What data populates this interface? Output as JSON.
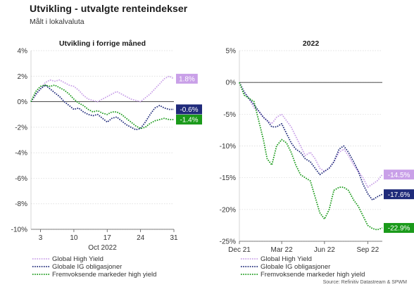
{
  "header": {
    "title": "Utvikling - utvalgte renteindekser",
    "subtitle": "Målt i lokalvaluta"
  },
  "colors": {
    "global_high_yield": "#c9a0e8",
    "globale_ig": "#1f2a7a",
    "fremvoksende": "#1a9a1a",
    "grid": "#d6d6d6",
    "zero": "#333333"
  },
  "source": "Source: Refinitiv Datastream & SPWM",
  "chart_data": [
    {
      "type": "line",
      "title": "Utvikling i forrige måned",
      "xlabel": "Oct 2022",
      "ylabel": "",
      "x_ticks": [
        "3",
        "10",
        "17",
        "24",
        "31"
      ],
      "x_tick_values": [
        3,
        10,
        17,
        24,
        31
      ],
      "xlim": [
        1,
        31
      ],
      "ylim": [
        -10,
        4
      ],
      "y_ticks": [
        4,
        2,
        0,
        -2,
        -4,
        -6,
        -8,
        -10
      ],
      "y_tick_labels": [
        "4%",
        "2%",
        "0%",
        "-2%",
        "-4%",
        "-6%",
        "-8%",
        "-10%"
      ],
      "grid": true,
      "series": [
        {
          "name": "Global High Yield",
          "color_key": "global_high_yield",
          "end_label": "1.8%",
          "x": [
            1,
            2,
            3,
            4,
            5,
            6,
            7,
            8,
            9,
            10,
            11,
            12,
            13,
            14,
            15,
            16,
            17,
            18,
            19,
            20,
            21,
            22,
            23,
            24,
            25,
            26,
            27,
            28,
            29,
            30,
            31
          ],
          "y": [
            0.0,
            0.5,
            1.0,
            1.5,
            1.7,
            1.6,
            1.7,
            1.5,
            1.3,
            1.2,
            0.9,
            0.5,
            0.2,
            0.1,
            0.0,
            0.2,
            0.4,
            0.6,
            0.8,
            0.6,
            0.4,
            0.2,
            0.1,
            0.0,
            0.3,
            0.6,
            1.0,
            1.4,
            1.8,
            2.0,
            1.8
          ]
        },
        {
          "name": "Globale IG obligasjoner",
          "color_key": "globale_ig",
          "end_label": "-0.6%",
          "x": [
            1,
            2,
            3,
            4,
            5,
            6,
            7,
            8,
            9,
            10,
            11,
            12,
            13,
            14,
            15,
            16,
            17,
            18,
            19,
            20,
            21,
            22,
            23,
            24,
            25,
            26,
            27,
            28,
            29,
            30,
            31
          ],
          "y": [
            0.0,
            0.6,
            1.0,
            1.3,
            1.0,
            0.7,
            0.4,
            0.0,
            -0.3,
            -0.6,
            -0.5,
            -0.8,
            -1.0,
            -1.1,
            -1.0,
            -1.3,
            -1.6,
            -1.3,
            -1.2,
            -1.5,
            -1.8,
            -2.0,
            -2.2,
            -2.1,
            -1.6,
            -1.0,
            -0.5,
            -0.3,
            -0.5,
            -0.6,
            -0.6
          ]
        },
        {
          "name": "Fremvoksende markeder high yield",
          "color_key": "fremvoksende",
          "end_label": "-1.4%",
          "x": [
            1,
            2,
            3,
            4,
            5,
            6,
            7,
            8,
            9,
            10,
            11,
            12,
            13,
            14,
            15,
            16,
            17,
            18,
            19,
            20,
            21,
            22,
            23,
            24,
            25,
            26,
            27,
            28,
            29,
            30,
            31
          ],
          "y": [
            0.0,
            0.8,
            1.2,
            1.3,
            1.2,
            1.3,
            1.1,
            0.9,
            0.6,
            0.2,
            -0.1,
            -0.3,
            -0.6,
            -0.8,
            -0.7,
            -0.9,
            -1.0,
            -0.8,
            -0.8,
            -1.0,
            -1.3,
            -1.6,
            -1.9,
            -2.1,
            -2.0,
            -1.7,
            -1.5,
            -1.4,
            -1.3,
            -1.4,
            -1.4
          ]
        }
      ]
    },
    {
      "type": "line",
      "title": "2022",
      "xlabel": "",
      "ylabel": "",
      "x_ticks": [
        "Dec 21",
        "Mar 22",
        "Jun 22",
        "Sep 22"
      ],
      "x_tick_values": [
        "2021-12-31",
        "2022-03-31",
        "2022-06-30",
        "2022-09-30"
      ],
      "xlim": [
        "2021-12-31",
        "2022-10-31"
      ],
      "ylim": [
        -25,
        5
      ],
      "y_ticks": [
        5,
        0,
        -5,
        -10,
        -15,
        -20,
        -25
      ],
      "y_tick_labels": [
        "5%",
        "0%",
        "-5%",
        "-10%",
        "-15%",
        "-20%",
        "-25%"
      ],
      "grid": true,
      "series": [
        {
          "name": "Global High Yield",
          "color_key": "global_high_yield",
          "end_label": "-14.5%",
          "x": [
            "2021-12-31",
            "2022-01-10",
            "2022-01-20",
            "2022-01-31",
            "2022-02-10",
            "2022-02-20",
            "2022-02-28",
            "2022-03-10",
            "2022-03-20",
            "2022-03-31",
            "2022-04-10",
            "2022-04-20",
            "2022-04-30",
            "2022-05-10",
            "2022-05-20",
            "2022-05-31",
            "2022-06-10",
            "2022-06-20",
            "2022-06-30",
            "2022-07-10",
            "2022-07-20",
            "2022-07-31",
            "2022-08-10",
            "2022-08-20",
            "2022-08-31",
            "2022-09-10",
            "2022-09-20",
            "2022-09-30",
            "2022-10-10",
            "2022-10-20",
            "2022-10-31"
          ],
          "y": [
            0,
            -1.5,
            -2.5,
            -4.0,
            -4.5,
            -5.5,
            -6.0,
            -6.5,
            -5.5,
            -5.0,
            -6.0,
            -7.0,
            -8.5,
            -10.0,
            -11.5,
            -11.0,
            -12.0,
            -13.5,
            -14.0,
            -13.5,
            -12.5,
            -11.0,
            -10.5,
            -11.5,
            -13.0,
            -14.0,
            -15.0,
            -16.5,
            -16.0,
            -15.5,
            -14.5
          ]
        },
        {
          "name": "Globale IG obligasjoner",
          "color_key": "globale_ig",
          "end_label": "-17.6%",
          "x": [
            "2021-12-31",
            "2022-01-10",
            "2022-01-20",
            "2022-01-31",
            "2022-02-10",
            "2022-02-20",
            "2022-02-28",
            "2022-03-10",
            "2022-03-20",
            "2022-03-31",
            "2022-04-10",
            "2022-04-20",
            "2022-04-30",
            "2022-05-10",
            "2022-05-20",
            "2022-05-31",
            "2022-06-10",
            "2022-06-20",
            "2022-06-30",
            "2022-07-10",
            "2022-07-20",
            "2022-07-31",
            "2022-08-10",
            "2022-08-20",
            "2022-08-31",
            "2022-09-10",
            "2022-09-20",
            "2022-09-30",
            "2022-10-10",
            "2022-10-20",
            "2022-10-31"
          ],
          "y": [
            0,
            -1.5,
            -2.5,
            -3.5,
            -4.5,
            -5.5,
            -6.0,
            -7.0,
            -7.0,
            -6.5,
            -8.0,
            -9.5,
            -10.5,
            -11.0,
            -12.0,
            -12.5,
            -13.5,
            -14.5,
            -14.0,
            -13.5,
            -12.5,
            -10.5,
            -10.0,
            -11.0,
            -12.5,
            -14.0,
            -16.0,
            -17.5,
            -18.5,
            -18.0,
            -17.6
          ]
        },
        {
          "name": "Fremvoksende markeder high yield",
          "color_key": "fremvoksende",
          "end_label": "-22.9%",
          "x": [
            "2021-12-31",
            "2022-01-10",
            "2022-01-20",
            "2022-01-31",
            "2022-02-10",
            "2022-02-20",
            "2022-02-28",
            "2022-03-10",
            "2022-03-20",
            "2022-03-31",
            "2022-04-10",
            "2022-04-20",
            "2022-04-30",
            "2022-05-10",
            "2022-05-20",
            "2022-05-31",
            "2022-06-10",
            "2022-06-20",
            "2022-06-30",
            "2022-07-10",
            "2022-07-20",
            "2022-07-31",
            "2022-08-10",
            "2022-08-20",
            "2022-08-31",
            "2022-09-10",
            "2022-09-20",
            "2022-09-30",
            "2022-10-10",
            "2022-10-20",
            "2022-10-31"
          ],
          "y": [
            0,
            -2.0,
            -2.5,
            -3.0,
            -6.0,
            -9.0,
            -12.0,
            -13.0,
            -10.0,
            -9.0,
            -9.5,
            -11.0,
            -13.0,
            -14.5,
            -15.0,
            -15.5,
            -18.0,
            -20.5,
            -21.5,
            -20.0,
            -17.0,
            -16.5,
            -16.5,
            -17.0,
            -18.5,
            -19.5,
            -21.0,
            -22.5,
            -23.0,
            -23.2,
            -22.9
          ]
        }
      ]
    }
  ]
}
